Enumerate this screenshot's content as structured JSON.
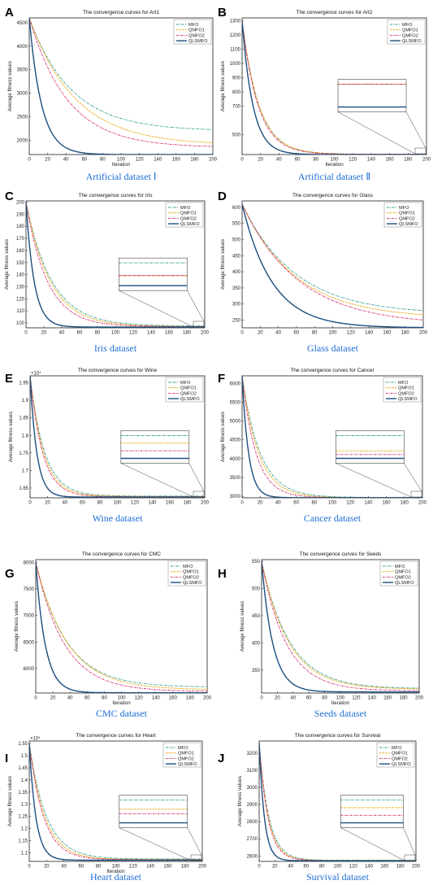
{
  "legend_labels": [
    "MFO",
    "QMFO1",
    "QMFO2",
    "QLSMFO"
  ],
  "series_colors": {
    "MFO": "#2a9d8f",
    "QMFO1": "#e8a100",
    "QMFO2": "#d6155b",
    "QLSMFO": "#1c4e80"
  },
  "chart_data": [
    {
      "letter": "A",
      "type": "line",
      "title": "The convergence curves for Art1",
      "caption": "Artificial dataset Ⅰ",
      "xlabel": "Iteration",
      "ylabel": "Average fitness values",
      "exponent": "",
      "xlim": [
        0,
        200
      ],
      "ylim": [
        1700,
        4600
      ],
      "xticks": [
        0,
        20,
        40,
        60,
        80,
        100,
        120,
        140,
        160,
        180,
        200
      ],
      "yticks": [
        2000,
        2500,
        3000,
        3500,
        4000,
        4500
      ],
      "yticklabels": [
        "2000",
        "2500",
        "3000",
        "3500",
        "4000",
        "4500"
      ],
      "inset": false,
      "series": [
        {
          "name": "MFO",
          "start": 4600,
          "final": 2200,
          "k": 0.022
        },
        {
          "name": "QMFO1",
          "start": 4600,
          "final": 1900,
          "k": 0.02
        },
        {
          "name": "QMFO2",
          "start": 4600,
          "final": 1850,
          "k": 0.024
        },
        {
          "name": "QLSMFO",
          "start": 4600,
          "final": 1700,
          "k": 0.075
        }
      ]
    },
    {
      "letter": "B",
      "type": "line",
      "title": "The convergence curves for Art2",
      "caption": "Artificial dataset Ⅱ",
      "xlabel": "Iteration",
      "ylabel": "Average fitness values",
      "exponent": "",
      "xlim": [
        0,
        200
      ],
      "ylim": [
        360,
        1320
      ],
      "xticks": [
        0,
        20,
        40,
        60,
        80,
        100,
        120,
        140,
        160,
        180,
        200
      ],
      "yticks": [
        500,
        700,
        800,
        900,
        1000,
        1100,
        1200,
        1300
      ],
      "yticklabels": [
        "500",
        "700",
        "800",
        "900",
        "1000",
        "1100",
        "1200",
        "1300"
      ],
      "inset": true,
      "series": [
        {
          "name": "MFO",
          "start": 1300,
          "final": 362,
          "k": 0.055
        },
        {
          "name": "QMFO1",
          "start": 1300,
          "final": 362,
          "k": 0.055
        },
        {
          "name": "QMFO2",
          "start": 1300,
          "final": 362,
          "k": 0.058
        },
        {
          "name": "QLSMFO",
          "start": 1300,
          "final": 360,
          "k": 0.085
        }
      ]
    },
    {
      "letter": "C",
      "type": "line",
      "title": "The convergence curves for Iris",
      "caption": "Iris dataset",
      "xlabel": "",
      "ylabel": "Average fitness values",
      "exponent": "",
      "xlim": [
        0,
        200
      ],
      "ylim": [
        96,
        201
      ],
      "xticks": [
        0,
        20,
        40,
        60,
        80,
        100,
        120,
        140,
        160,
        180,
        200
      ],
      "yticks": [
        100,
        110,
        120,
        130,
        140,
        150,
        160,
        170,
        180,
        190,
        200
      ],
      "yticklabels": [
        "100",
        "110",
        "120",
        "130",
        "140",
        "150",
        "160",
        "170",
        "180",
        "190",
        "200"
      ],
      "inset": true,
      "series": [
        {
          "name": "MFO",
          "start": 200,
          "final": 97.5,
          "k": 0.035
        },
        {
          "name": "QMFO1",
          "start": 200,
          "final": 97,
          "k": 0.037
        },
        {
          "name": "QMFO2",
          "start": 200,
          "final": 97,
          "k": 0.042
        },
        {
          "name": "QLSMFO",
          "start": 200,
          "final": 96.6,
          "k": 0.11
        }
      ]
    },
    {
      "letter": "D",
      "type": "line",
      "title": "The convergence curves for Glass",
      "caption": "Glass dataset",
      "xlabel": "",
      "ylabel": "Average fitness values",
      "exponent": "",
      "xlim": [
        0,
        200
      ],
      "ylim": [
        226,
        620
      ],
      "xticks": [
        0,
        20,
        40,
        60,
        80,
        100,
        120,
        140,
        160,
        180,
        200
      ],
      "yticks": [
        250,
        300,
        350,
        400,
        450,
        500,
        550,
        600
      ],
      "yticklabels": [
        "250",
        "300",
        "350",
        "400",
        "450",
        "500",
        "550",
        "600"
      ],
      "inset": false,
      "series": [
        {
          "name": "MFO",
          "start": 610,
          "final": 268,
          "k": 0.017
        },
        {
          "name": "QMFO1",
          "start": 610,
          "final": 255,
          "k": 0.017
        },
        {
          "name": "QMFO2",
          "start": 610,
          "final": 235,
          "k": 0.016
        },
        {
          "name": "QLSMFO",
          "start": 610,
          "final": 226,
          "k": 0.03
        }
      ]
    },
    {
      "letter": "E",
      "type": "line",
      "title": "The convergence curves for Wine",
      "caption": "Wine dataset",
      "xlabel": "",
      "ylabel": "Average fitness values",
      "exponent": "×10⁴",
      "xlim": [
        0,
        200
      ],
      "ylim": [
        1.622,
        1.97
      ],
      "xticks": [
        0,
        20,
        40,
        60,
        80,
        100,
        120,
        140,
        160,
        180,
        200
      ],
      "yticks": [
        1.65,
        1.7,
        1.75,
        1.8,
        1.85,
        1.9,
        1.95
      ],
      "yticklabels": [
        "1.65",
        "1.7",
        "1.75",
        "1.8",
        "1.85",
        "1.9",
        "1.95"
      ],
      "inset": true,
      "series": [
        {
          "name": "MFO",
          "start": 1.97,
          "final": 1.627,
          "k": 0.06
        },
        {
          "name": "QMFO1",
          "start": 1.97,
          "final": 1.626,
          "k": 0.065
        },
        {
          "name": "QMFO2",
          "start": 1.97,
          "final": 1.625,
          "k": 0.07
        },
        {
          "name": "QLSMFO",
          "start": 1.97,
          "final": 1.624,
          "k": 0.13
        }
      ]
    },
    {
      "letter": "F",
      "type": "line",
      "title": "The convergence curves for Cancer",
      "caption": "Cancer dataset",
      "xlabel": "",
      "ylabel": "Average fitness values",
      "exponent": "",
      "xlim": [
        0,
        200
      ],
      "ylim": [
        2960,
        6200
      ],
      "xticks": [
        0,
        20,
        40,
        60,
        80,
        100,
        120,
        140,
        160,
        180,
        200
      ],
      "yticks": [
        3000,
        3500,
        4000,
        4500,
        5000,
        5500,
        6000
      ],
      "yticklabels": [
        "3000",
        "3500",
        "4000",
        "4500",
        "5000",
        "5500",
        "6000"
      ],
      "inset": true,
      "series": [
        {
          "name": "MFO",
          "start": 6200,
          "final": 2970,
          "k": 0.05
        },
        {
          "name": "QMFO1",
          "start": 6200,
          "final": 2966,
          "k": 0.055
        },
        {
          "name": "QMFO2",
          "start": 6200,
          "final": 2965,
          "k": 0.065
        },
        {
          "name": "QLSMFO",
          "start": 6200,
          "final": 2964,
          "k": 0.14
        }
      ]
    },
    {
      "letter": "G",
      "type": "line",
      "title": "The convergence curves for CMC",
      "caption": "CMC dataset",
      "xlabel": "Iteration",
      "ylabel": "Average fitness values",
      "exponent": "",
      "xlim": [
        0,
        200
      ],
      "ylim": [
        5540,
        8050
      ],
      "xticks": [
        0,
        20,
        40,
        60,
        80,
        100,
        120,
        140,
        160,
        180,
        200
      ],
      "yticks": [
        6000,
        6500,
        7000,
        7500,
        8000
      ],
      "yticklabels": [
        "6000",
        "6500",
        "7000",
        "7500",
        "8000"
      ],
      "inset": false,
      "series": [
        {
          "name": "MFO",
          "start": 8000,
          "final": 5650,
          "k": 0.028
        },
        {
          "name": "QMFO1",
          "start": 8000,
          "final": 5600,
          "k": 0.027
        },
        {
          "name": "QMFO2",
          "start": 8000,
          "final": 5570,
          "k": 0.03
        },
        {
          "name": "QLSMFO",
          "start": 8000,
          "final": 5545,
          "k": 0.09
        }
      ]
    },
    {
      "letter": "H",
      "type": "line",
      "title": "The convergence curves for Seeds",
      "caption": "Seeds dataset",
      "xlabel": "Iteration",
      "ylabel": "Average fitness values",
      "exponent": "",
      "xlim": [
        0,
        200
      ],
      "ylim": [
        308,
        553
      ],
      "xticks": [
        0,
        20,
        40,
        60,
        80,
        100,
        120,
        140,
        160,
        180,
        200
      ],
      "yticks": [
        350,
        400,
        450,
        500,
        550
      ],
      "yticklabels": [
        "350",
        "400",
        "450",
        "500",
        "550"
      ],
      "inset": false,
      "series": [
        {
          "name": "MFO",
          "start": 550,
          "final": 316,
          "k": 0.028
        },
        {
          "name": "QMFO1",
          "start": 550,
          "final": 315,
          "k": 0.029
        },
        {
          "name": "QMFO2",
          "start": 550,
          "final": 312,
          "k": 0.032
        },
        {
          "name": "QLSMFO",
          "start": 550,
          "final": 310,
          "k": 0.07
        }
      ]
    },
    {
      "letter": "I",
      "type": "line",
      "title": "The convergence curves for Heart",
      "caption": "Heart dataset",
      "xlabel": "Iteration",
      "ylabel": "Average fitness values",
      "exponent": "×10⁴",
      "xlim": [
        0,
        200
      ],
      "ylim": [
        1.065,
        1.56
      ],
      "xticks": [
        0,
        20,
        40,
        60,
        80,
        100,
        120,
        140,
        160,
        180,
        200
      ],
      "yticks": [
        1.1,
        1.15,
        1.2,
        1.25,
        1.3,
        1.35,
        1.4,
        1.45,
        1.5,
        1.55
      ],
      "yticklabels": [
        "1.1",
        "1.15",
        "1.2",
        "1.25",
        "1.3",
        "1.35",
        "1.4",
        "1.45",
        "1.5",
        "1.55"
      ],
      "inset": true,
      "series": [
        {
          "name": "MFO",
          "start": 1.55,
          "final": 1.075,
          "k": 0.05
        },
        {
          "name": "QMFO1",
          "start": 1.55,
          "final": 1.073,
          "k": 0.055
        },
        {
          "name": "QMFO2",
          "start": 1.55,
          "final": 1.072,
          "k": 0.06
        },
        {
          "name": "QLSMFO",
          "start": 1.55,
          "final": 1.07,
          "k": 0.13
        }
      ]
    },
    {
      "letter": "J",
      "type": "line",
      "title": "The convergence curves for Survival",
      "caption": "Survival dataset",
      "xlabel": "",
      "ylabel": "Average fitness values",
      "exponent": "",
      "xlim": [
        0,
        200
      ],
      "ylim": [
        2568,
        3270
      ],
      "xticks": [
        0,
        20,
        40,
        60,
        80,
        100,
        120,
        140,
        160,
        180,
        200
      ],
      "yticks": [
        2600,
        2700,
        2800,
        2900,
        3000,
        3100,
        3200
      ],
      "yticklabels": [
        "2600",
        "2700",
        "2800",
        "2900",
        "3000",
        "3100",
        "3200"
      ],
      "inset": true,
      "series": [
        {
          "name": "MFO",
          "start": 3260,
          "final": 2575,
          "k": 0.08
        },
        {
          "name": "QMFO1",
          "start": 3260,
          "final": 2574,
          "k": 0.085
        },
        {
          "name": "QMFO2",
          "start": 3260,
          "final": 2573,
          "k": 0.09
        },
        {
          "name": "QLSMFO",
          "start": 3260,
          "final": 2572,
          "k": 0.15
        }
      ]
    }
  ]
}
